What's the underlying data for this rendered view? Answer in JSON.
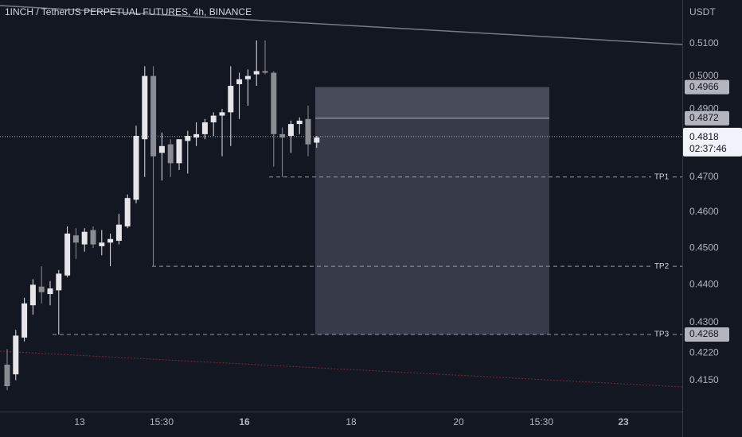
{
  "header": {
    "title": "1INCH / TetherUS PERPETUAL FUTURES, 4h, BINANCE"
  },
  "price_axis": {
    "unit": "USDT",
    "current_price": "0.4818",
    "countdown": "02:37:46",
    "price_tags": [
      {
        "value": 0.4966,
        "label": "0.4966"
      },
      {
        "value": 0.4872,
        "label": "0.4872"
      },
      {
        "value": 0.4268,
        "label": "0.4268"
      }
    ]
  },
  "colors": {
    "background": "#131722",
    "candle_up": "#e6e6ea",
    "candle_down": "#8a8c93",
    "trendline": "#787b86",
    "support_line": "#7a2a3a",
    "target_box": "#3d4150",
    "axis_text": "#b2b5be"
  },
  "chart_data": {
    "type": "candlestick",
    "title": "1INCH / TetherUS PERPETUAL FUTURES, 4h, BINANCE",
    "ylabel": "USDT",
    "y_range": [
      0.4125,
      0.5195
    ],
    "y_scale": "log",
    "y_ticks": [
      "0.5100",
      "0.5000",
      "0.4900",
      "0.4700",
      "0.4600",
      "0.4500",
      "0.4400",
      "0.4300",
      "0.4220",
      "0.4150"
    ],
    "x_ticks": [
      "13",
      "15:30",
      "16",
      "18",
      "20",
      "15:30",
      "23"
    ],
    "candles": [
      {
        "o": 0.419,
        "h": 0.423,
        "l": 0.4125,
        "c": 0.4135
      },
      {
        "o": 0.4165,
        "h": 0.428,
        "l": 0.415,
        "c": 0.4265
      },
      {
        "o": 0.426,
        "h": 0.4365,
        "l": 0.425,
        "c": 0.435
      },
      {
        "o": 0.4345,
        "h": 0.4415,
        "l": 0.432,
        "c": 0.44
      },
      {
        "o": 0.4395,
        "h": 0.445,
        "l": 0.435,
        "c": 0.438
      },
      {
        "o": 0.4375,
        "h": 0.441,
        "l": 0.4345,
        "c": 0.439
      },
      {
        "o": 0.4385,
        "h": 0.444,
        "l": 0.4268,
        "c": 0.443
      },
      {
        "o": 0.4425,
        "h": 0.456,
        "l": 0.442,
        "c": 0.454
      },
      {
        "o": 0.4535,
        "h": 0.4555,
        "l": 0.447,
        "c": 0.4515
      },
      {
        "o": 0.451,
        "h": 0.4555,
        "l": 0.449,
        "c": 0.4545
      },
      {
        "o": 0.455,
        "h": 0.456,
        "l": 0.45,
        "c": 0.451
      },
      {
        "o": 0.4505,
        "h": 0.455,
        "l": 0.448,
        "c": 0.4515
      },
      {
        "o": 0.4515,
        "h": 0.454,
        "l": 0.445,
        "c": 0.4525
      },
      {
        "o": 0.452,
        "h": 0.4595,
        "l": 0.451,
        "c": 0.4565
      },
      {
        "o": 0.456,
        "h": 0.465,
        "l": 0.4555,
        "c": 0.464
      },
      {
        "o": 0.4635,
        "h": 0.485,
        "l": 0.4625,
        "c": 0.482
      },
      {
        "o": 0.481,
        "h": 0.503,
        "l": 0.47,
        "c": 0.5
      },
      {
        "o": 0.5,
        "h": 0.503,
        "l": 0.445,
        "c": 0.476
      },
      {
        "o": 0.477,
        "h": 0.483,
        "l": 0.469,
        "c": 0.479
      },
      {
        "o": 0.4795,
        "h": 0.481,
        "l": 0.47,
        "c": 0.474
      },
      {
        "o": 0.474,
        "h": 0.481,
        "l": 0.472,
        "c": 0.481
      },
      {
        "o": 0.4805,
        "h": 0.4835,
        "l": 0.471,
        "c": 0.482
      },
      {
        "o": 0.4815,
        "h": 0.486,
        "l": 0.479,
        "c": 0.4825
      },
      {
        "o": 0.4825,
        "h": 0.487,
        "l": 0.481,
        "c": 0.486
      },
      {
        "o": 0.486,
        "h": 0.489,
        "l": 0.482,
        "c": 0.488
      },
      {
        "o": 0.488,
        "h": 0.49,
        "l": 0.476,
        "c": 0.489
      },
      {
        "o": 0.489,
        "h": 0.503,
        "l": 0.479,
        "c": 0.497
      },
      {
        "o": 0.4975,
        "h": 0.501,
        "l": 0.487,
        "c": 0.499
      },
      {
        "o": 0.499,
        "h": 0.502,
        "l": 0.491,
        "c": 0.5
      },
      {
        "o": 0.5005,
        "h": 0.511,
        "l": 0.497,
        "c": 0.5015
      },
      {
        "o": 0.5015,
        "h": 0.511,
        "l": 0.5005,
        "c": 0.501
      },
      {
        "o": 0.501,
        "h": 0.5015,
        "l": 0.473,
        "c": 0.4825
      },
      {
        "o": 0.4825,
        "h": 0.4845,
        "l": 0.47,
        "c": 0.4815
      },
      {
        "o": 0.482,
        "h": 0.4865,
        "l": 0.477,
        "c": 0.4855
      },
      {
        "o": 0.4855,
        "h": 0.4875,
        "l": 0.4825,
        "c": 0.4865
      },
      {
        "o": 0.487,
        "h": 0.491,
        "l": 0.476,
        "c": 0.4795
      },
      {
        "o": 0.48,
        "h": 0.482,
        "l": 0.4785,
        "c": 0.4815
      }
    ],
    "targets": [
      {
        "name": "TP1",
        "price": 0.47
      },
      {
        "name": "TP2",
        "price": 0.445
      },
      {
        "name": "TP3",
        "price": 0.4268
      }
    ],
    "target_zone": {
      "upper_price": 0.4966,
      "entry_price": 0.4872,
      "lower_price": 0.4268
    },
    "current_price": 0.4818,
    "grid": false
  }
}
